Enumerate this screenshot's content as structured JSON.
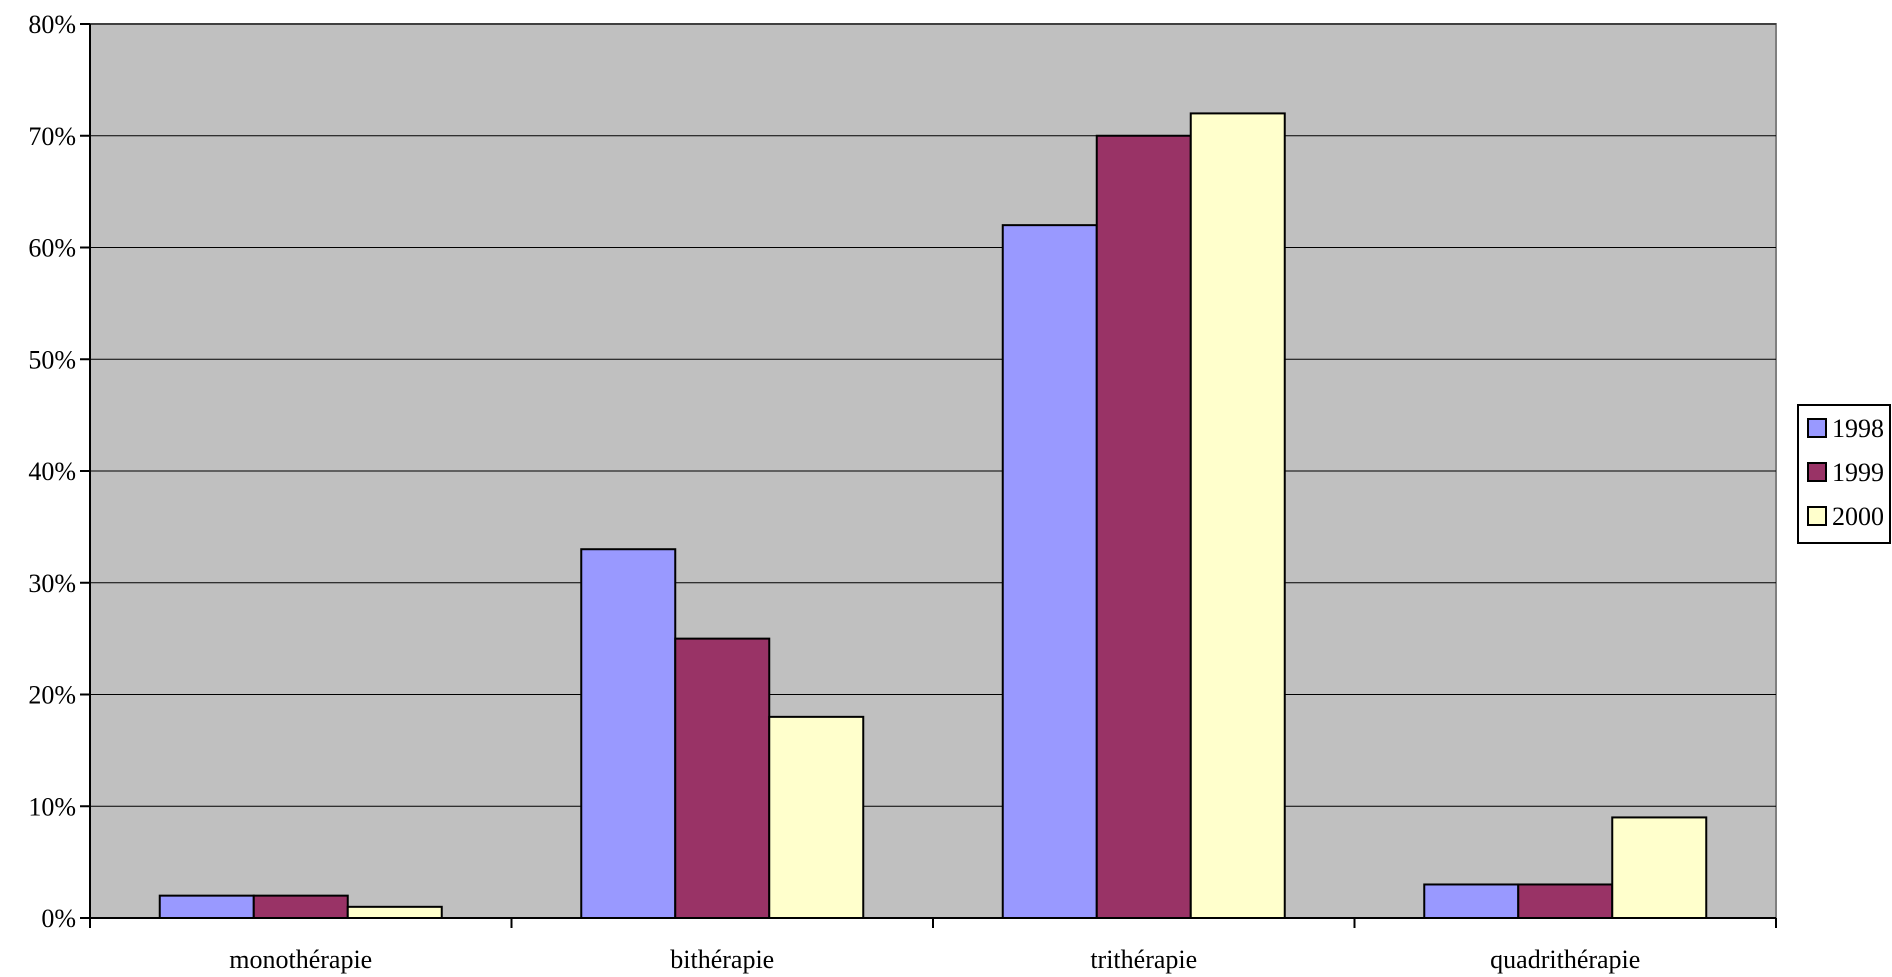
{
  "chart_data": {
    "type": "bar",
    "categories": [
      "monothérapie",
      "bithérapie",
      "trithérapie",
      "quadrithérapie"
    ],
    "series": [
      {
        "name": "1998",
        "values": [
          2,
          33,
          62,
          3
        ],
        "color": "#9999ff"
      },
      {
        "name": "1999",
        "values": [
          2,
          25,
          70,
          3
        ],
        "color": "#993366"
      },
      {
        "name": "2000",
        "values": [
          1,
          18,
          72,
          9
        ],
        "color": "#ffffcc"
      }
    ],
    "ylim": [
      0,
      80
    ],
    "yticks": [
      0,
      10,
      20,
      30,
      40,
      50,
      60,
      70,
      80
    ],
    "ytick_labels": [
      "0%",
      "10%",
      "20%",
      "30%",
      "40%",
      "50%",
      "60%",
      "70%",
      "80%"
    ],
    "grid": true,
    "legend_position": "right",
    "plot_background": "#c0c0c0",
    "bar_outline": "#000000"
  }
}
